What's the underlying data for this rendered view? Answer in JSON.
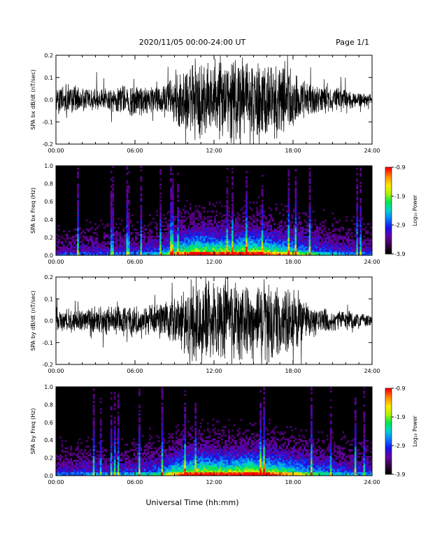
{
  "header": {
    "title": "2020/11/05  00:00-24:00 UT",
    "page": "Page 1/1"
  },
  "footer": {
    "xlabel": "Universal Time (hh:mm)"
  },
  "colors": {
    "background": "#ffffff",
    "trace": "#000000",
    "colormap": [
      "#000000",
      "#3a0050",
      "#6a00a8",
      "#1414e6",
      "#0a78ff",
      "#00d2d2",
      "#00e650",
      "#b4f000",
      "#ffe600",
      "#ff8c00",
      "#ff0000"
    ]
  },
  "chart_data": [
    {
      "type": "line",
      "ylabel": "SPA bx dB/dt (nT/sec)",
      "ylim": [
        -0.2,
        0.2
      ],
      "yticks": [
        "-0.2",
        "-0.1",
        "0.0",
        "0.1",
        "0.2"
      ],
      "ytick_values": [
        -0.2,
        -0.1,
        0.0,
        0.1,
        0.2
      ],
      "xlim": [
        "00:00",
        "24:00"
      ],
      "xticks": [
        "00:00",
        "06:00",
        "12:00",
        "18:00",
        "24:00"
      ],
      "series": [
        {
          "x_hours": [
            0,
            1,
            2,
            3,
            4,
            5,
            6,
            7,
            8,
            9,
            10,
            11,
            12,
            13,
            14,
            15,
            16,
            17,
            18,
            19,
            20,
            21,
            22,
            23,
            24
          ],
          "amplitude": [
            0.06,
            0.08,
            0.06,
            0.06,
            0.06,
            0.07,
            0.09,
            0.07,
            0.08,
            0.11,
            0.2,
            0.2,
            0.2,
            0.2,
            0.2,
            0.2,
            0.2,
            0.2,
            0.15,
            0.09,
            0.07,
            0.06,
            0.05,
            0.04,
            0.03
          ]
        }
      ]
    },
    {
      "type": "heatmap",
      "ylabel": "SPA bx Freq (Hz)",
      "ylim": [
        0.0,
        1.0
      ],
      "yticks": [
        "0.0",
        "0.2",
        "0.4",
        "0.6",
        "0.8",
        "1.0"
      ],
      "ytick_values": [
        0.0,
        0.2,
        0.4,
        0.6,
        0.8,
        1.0
      ],
      "xlim": [
        "00:00",
        "24:00"
      ],
      "xticks": [
        "00:00",
        "06:00",
        "12:00",
        "18:00",
        "24:00"
      ],
      "colorbar": {
        "label": "Log₁₀ Power",
        "range": [
          -3.9,
          -0.9
        ],
        "ticks": [
          "-0.9",
          "-1.9",
          "-2.9",
          "-3.9"
        ],
        "tick_values": [
          -0.9,
          -1.9,
          -2.9,
          -3.9
        ]
      },
      "activity_hours": [
        0,
        2,
        4,
        6,
        8,
        9,
        10,
        11,
        12,
        13,
        14,
        15,
        16,
        17,
        18,
        20,
        22,
        24
      ],
      "activity_level": [
        0.25,
        0.3,
        0.3,
        0.35,
        0.45,
        0.7,
        0.85,
        0.9,
        0.85,
        0.85,
        0.85,
        0.9,
        0.8,
        0.75,
        0.65,
        0.45,
        0.35,
        0.3
      ]
    },
    {
      "type": "line",
      "ylabel": "SPA by dB/dt (nT/sec)",
      "ylim": [
        -0.2,
        0.2
      ],
      "yticks": [
        "-0.2",
        "-0.1",
        "0.0",
        "0.1",
        "0.2"
      ],
      "ytick_values": [
        -0.2,
        -0.1,
        0.0,
        0.1,
        0.2
      ],
      "xlim": [
        "00:00",
        "24:00"
      ],
      "xticks": [
        "00:00",
        "06:00",
        "12:00",
        "18:00",
        "24:00"
      ],
      "series": [
        {
          "x_hours": [
            0,
            1,
            2,
            3,
            4,
            5,
            6,
            7,
            8,
            9,
            10,
            11,
            12,
            13,
            14,
            15,
            16,
            17,
            18,
            19,
            20,
            21,
            22,
            23,
            24
          ],
          "amplitude": [
            0.05,
            0.06,
            0.06,
            0.07,
            0.07,
            0.08,
            0.08,
            0.08,
            0.09,
            0.12,
            0.2,
            0.2,
            0.2,
            0.2,
            0.2,
            0.2,
            0.2,
            0.2,
            0.16,
            0.09,
            0.07,
            0.06,
            0.05,
            0.04,
            0.03
          ]
        }
      ]
    },
    {
      "type": "heatmap",
      "ylabel": "SPA by Freq (Hz)",
      "ylim": [
        0.0,
        1.0
      ],
      "yticks": [
        "0.0",
        "0.2",
        "0.4",
        "0.6",
        "0.8",
        "1.0"
      ],
      "ytick_values": [
        0.0,
        0.2,
        0.4,
        0.6,
        0.8,
        1.0
      ],
      "xlim": [
        "00:00",
        "24:00"
      ],
      "xticks": [
        "00:00",
        "06:00",
        "12:00",
        "18:00",
        "24:00"
      ],
      "colorbar": {
        "label": "Log₁₀ Power",
        "range": [
          -3.9,
          -0.9
        ],
        "ticks": [
          "-0.9",
          "-1.9",
          "-2.9",
          "-3.9"
        ],
        "tick_values": [
          -0.9,
          -1.9,
          -2.9,
          -3.9
        ]
      },
      "activity_hours": [
        0,
        2,
        4,
        6,
        8,
        9,
        10,
        11,
        12,
        13,
        14,
        15,
        16,
        17,
        18,
        20,
        22,
        24
      ],
      "activity_level": [
        0.3,
        0.35,
        0.35,
        0.4,
        0.5,
        0.75,
        0.85,
        0.9,
        0.85,
        0.85,
        0.9,
        0.95,
        0.85,
        0.8,
        0.7,
        0.5,
        0.4,
        0.35
      ]
    }
  ]
}
